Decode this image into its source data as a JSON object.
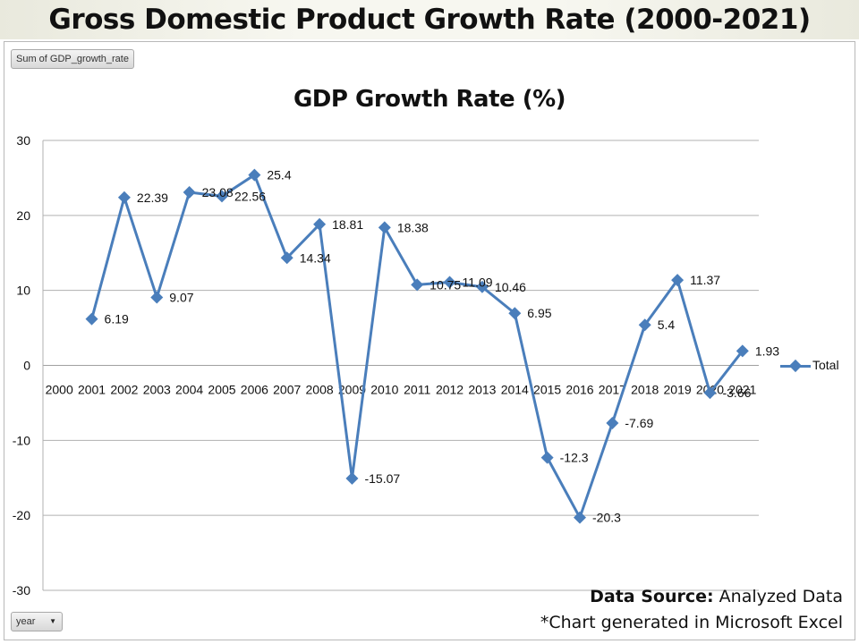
{
  "page": {
    "title": "Gross Domestic Product Growth Rate (2000-2021)",
    "source_label": "Data Source:",
    "source_value": "Analyzed Data",
    "note": "*Chart generated in Microsoft Excel"
  },
  "pivot": {
    "value_field": "Sum of GDP_growth_rate",
    "axis_field": "year",
    "dropdown_icon": "triangle-down-icon"
  },
  "chart_data": {
    "type": "line",
    "title": "GDP Growth Rate (%)",
    "xlabel": "",
    "ylabel": "",
    "categories": [
      "2000",
      "2001",
      "2002",
      "2003",
      "2004",
      "2005",
      "2006",
      "2007",
      "2008",
      "2009",
      "2010",
      "2011",
      "2012",
      "2013",
      "2014",
      "2015",
      "2016",
      "2017",
      "2018",
      "2019",
      "2020",
      "2021"
    ],
    "series": [
      {
        "name": "Total",
        "color": "#4a7ebb",
        "values": [
          null,
          6.19,
          22.39,
          9.07,
          23.08,
          22.56,
          25.4,
          14.34,
          18.81,
          -15.07,
          18.38,
          10.75,
          11.09,
          10.46,
          6.95,
          -12.3,
          -20.3,
          -7.69,
          5.4,
          11.37,
          -3.66,
          1.93
        ]
      }
    ],
    "ylim": [
      -30,
      30
    ],
    "yticks": [
      30,
      20,
      10,
      0,
      -10,
      -20,
      -30
    ],
    "grid": true,
    "legend": "right",
    "data_labels": true
  }
}
